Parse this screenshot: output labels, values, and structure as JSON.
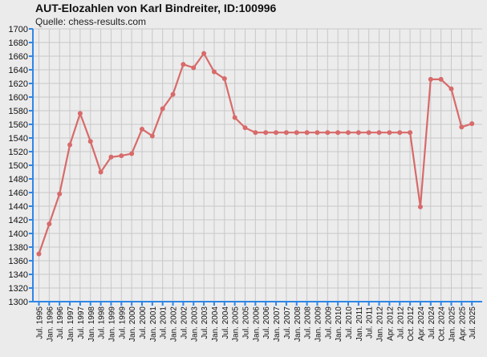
{
  "title": "AUT-Elozahlen von Karl Bindreiter, ID:100996",
  "subtitle": "Quelle: chess-results.com",
  "colors": {
    "line": "#d86a6a",
    "grid": "#c8c8c8",
    "axis": "#2f86e6",
    "background": "#ebebeb"
  },
  "chart_data": {
    "type": "line",
    "title": "AUT-Elozahlen von Karl Bindreiter, ID:100996",
    "xlabel": "",
    "ylabel": "",
    "ylim": [
      1300,
      1700
    ],
    "ytick_step": 20,
    "grid": true,
    "categories": [
      "Jul. 1995",
      "Jan. 1996",
      "Jul. 1996",
      "Jan. 1997",
      "Jul. 1997",
      "Jan. 1998",
      "Jul. 1998",
      "Jan. 1999",
      "Jul. 1999",
      "Jan. 2000",
      "Jul. 2000",
      "Jan. 2001",
      "Jul. 2001",
      "Jan. 2002",
      "Jul. 2002",
      "Jan. 2003",
      "Jul. 2003",
      "Jan. 2004",
      "Jul. 2004",
      "Jan. 2005",
      "Jul. 2005",
      "Jan. 2006",
      "Jul. 2006",
      "Jan. 2007",
      "Jul. 2007",
      "Jan. 2008",
      "Jul. 2008",
      "Jan. 2009",
      "Jul. 2009",
      "Jan. 2010",
      "Jul. 2010",
      "Jan. 2011",
      "Jul. 2011",
      "Jan. 2012",
      "Apr. 2012",
      "Jul. 2012",
      "Oct. 2012",
      "Apr. 2024",
      "Jul. 2024",
      "Oct. 2024",
      "Jan. 2025",
      "Apr. 2025",
      "Jul. 2025"
    ],
    "values": [
      1370,
      1414,
      1458,
      1530,
      1576,
      1535,
      1490,
      1512,
      1514,
      1517,
      1553,
      1543,
      1583,
      1604,
      1648,
      1643,
      1664,
      1637,
      1627,
      1570,
      1555,
      1548,
      1548,
      1548,
      1548,
      1548,
      1548,
      1548,
      1548,
      1548,
      1548,
      1548,
      1548,
      1548,
      1548,
      1548,
      1548,
      1439,
      1626,
      1626,
      1612,
      1556,
      1561
    ]
  }
}
